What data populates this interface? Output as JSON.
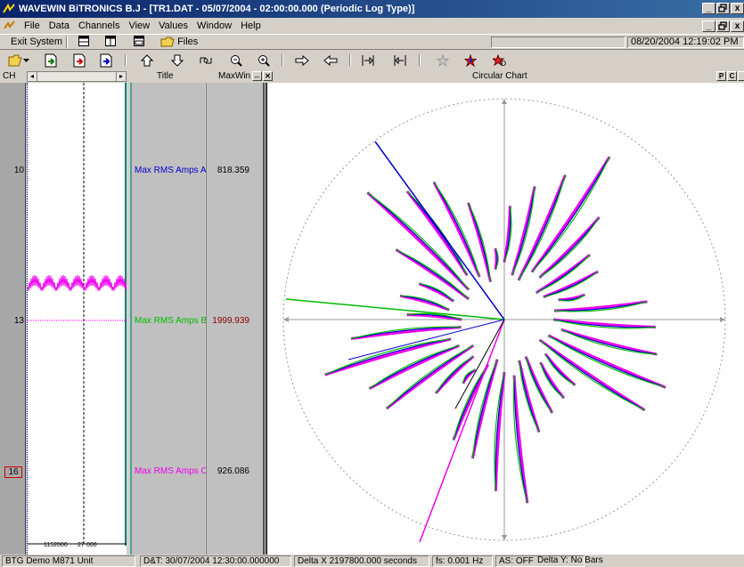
{
  "window": {
    "title": "WAVEWIN BiTRONICS B.J - [TR1.DAT - 05/07/2004 - 02:00:00.000 (Periodic Log Type)]",
    "min_label": "_",
    "restore_label": "ā",
    "close_label": "x"
  },
  "menu": {
    "items": [
      "File",
      "Data",
      "Channels",
      "View",
      "Values",
      "Window",
      "Help"
    ]
  },
  "toolbar1": {
    "exit_label": "Exit System",
    "files_label": "Files",
    "datetime": "08/20/2004  12:19:02 PM"
  },
  "toolbar2": {
    "icons": [
      "open-icon",
      "dropdown-arrow-icon",
      "export-green-icon",
      "export-red-icon",
      "export-blue-icon",
      "arrow-up-icon",
      "arrow-down-icon",
      "arrow-diagonal-icon",
      "zoom-out-icon",
      "zoom-in-icon",
      "arrow-right-icon",
      "arrow-left-icon",
      "cursor-left-icon",
      "cursor-right-icon",
      "star-gray-icon",
      "flag-red-icon",
      "flag-d-icon"
    ]
  },
  "header": {
    "ch_label": "CH",
    "title_label": "Title",
    "maxwin_label": "MaxWin",
    "chart_label": "Circular Chart",
    "buttons": [
      "P",
      "C"
    ]
  },
  "channels": [
    {
      "num": "10",
      "title": "Max RMS Amps A",
      "value": "818.359",
      "color": "#0000cc",
      "valcolor": "#000000",
      "boxed": false
    },
    {
      "num": "13",
      "title": "Max RMS Amps B",
      "value": "1999.939",
      "color": "#00bb00",
      "valcolor": "#8b0000",
      "boxed": false
    },
    {
      "num": "16",
      "title": "Max RMS Amps C",
      "value": "926.086",
      "color": "#ee00ee",
      "valcolor": "#000000",
      "boxed": true
    }
  ],
  "wave": {
    "axis_labels": [
      "1152000",
      "27",
      "000"
    ]
  },
  "status": {
    "unit": "BTG Demo M871 Unit",
    "datetime": "D&T: 30/07/2004 12:30:00.000000",
    "delta_x": "Delta X  2197800.000 seconds",
    "fs": "fs:   0.001 Hz",
    "as": "AS:  OFF",
    "delta_y": "Delta Y:  No Bars"
  },
  "colors": {
    "phase_a": "#0000cc",
    "phase_b": "#00bb00",
    "phase_c": "#ee00ee",
    "title_gradient_start": "#0a246a",
    "title_gradient_end": "#3a6ea5"
  }
}
